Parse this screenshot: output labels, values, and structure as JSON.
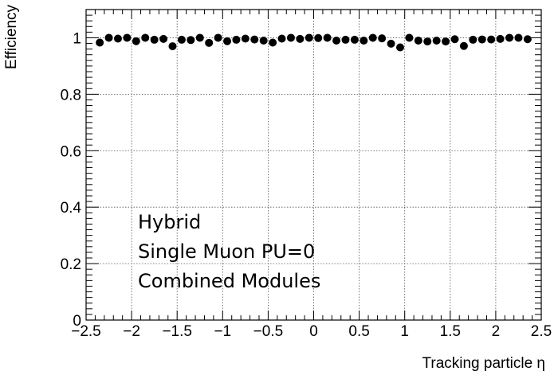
{
  "chart_data": {
    "type": "scatter",
    "title": "",
    "xlabel": "Tracking particle η",
    "ylabel": "Efficiency",
    "xlim": [
      -2.5,
      2.5
    ],
    "ylim": [
      0,
      1.1
    ],
    "grid": true,
    "legend": "none",
    "x_ticks": [
      {
        "value": -2.5,
        "label": "−2.5"
      },
      {
        "value": -2,
        "label": "−2"
      },
      {
        "value": -1.5,
        "label": "−1.5"
      },
      {
        "value": -1,
        "label": "−1"
      },
      {
        "value": -0.5,
        "label": "−0.5"
      },
      {
        "value": 0,
        "label": "0"
      },
      {
        "value": 0.5,
        "label": "0.5"
      },
      {
        "value": 1,
        "label": "1"
      },
      {
        "value": 1.5,
        "label": "1.5"
      },
      {
        "value": 2,
        "label": "2"
      },
      {
        "value": 2.5,
        "label": "2.5"
      }
    ],
    "y_ticks": [
      {
        "value": 0,
        "label": "0"
      },
      {
        "value": 0.2,
        "label": "0.2"
      },
      {
        "value": 0.4,
        "label": "0.4"
      },
      {
        "value": 0.6,
        "label": "0.6"
      },
      {
        "value": 0.8,
        "label": "0.8"
      },
      {
        "value": 1,
        "label": "1"
      }
    ],
    "annotations": [
      "Hybrid",
      "Single Muon PU=0",
      "Combined Modules"
    ],
    "marker_color": "#000000",
    "series": [
      {
        "x": [
          -2.35,
          -2.25,
          -2.15,
          -2.05,
          -1.95,
          -1.85,
          -1.75,
          -1.65,
          -1.55,
          -1.45,
          -1.35,
          -1.25,
          -1.15,
          -1.05,
          -0.95,
          -0.85,
          -0.75,
          -0.65,
          -0.55,
          -0.45,
          -0.35,
          -0.25,
          -0.15,
          -0.05,
          0.05,
          0.15,
          0.25,
          0.35,
          0.45,
          0.55,
          0.65,
          0.75,
          0.85,
          0.95,
          1.05,
          1.15,
          1.25,
          1.35,
          1.45,
          1.55,
          1.65,
          1.75,
          1.85,
          1.95,
          2.05,
          2.15,
          2.25,
          2.35
        ],
        "y": [
          0.983,
          1.0,
          0.997,
          1.0,
          0.988,
          1.0,
          0.993,
          0.996,
          0.97,
          0.993,
          0.992,
          1.0,
          0.982,
          1.0,
          0.988,
          0.993,
          0.997,
          0.994,
          0.99,
          0.983,
          0.997,
          1.0,
          0.996,
          1.0,
          0.999,
          1.0,
          0.99,
          0.993,
          0.993,
          0.99,
          1.0,
          0.998,
          0.979,
          0.966,
          1.0,
          0.99,
          0.987,
          0.99,
          0.987,
          0.995,
          0.971,
          0.993,
          0.994,
          0.994,
          0.996,
          1.0,
          1.0,
          0.995
        ]
      }
    ]
  }
}
